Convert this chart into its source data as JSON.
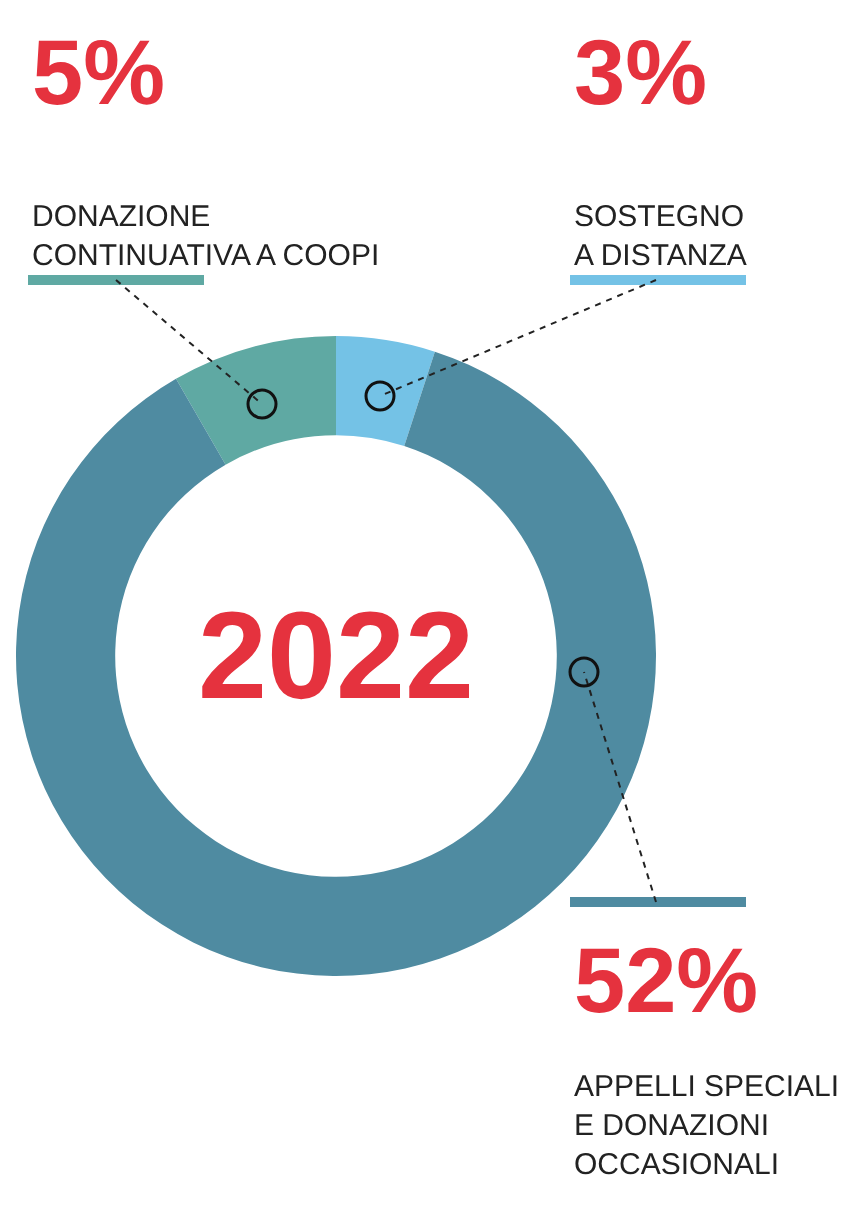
{
  "chart_data": {
    "type": "donut",
    "title": "2022",
    "categories": [
      "DONAZIONE\nCONTINUATIVA A COOPI",
      "SOSTEGNO\nA DISTANZA",
      "APPELLI SPECIALI\nE DONAZIONI\nOCCASIONALI"
    ],
    "values": [
      5,
      3,
      52
    ],
    "value_labels": [
      "5%",
      "3%",
      "52%"
    ],
    "colors": [
      "#5fa9a3",
      "#74c2e6",
      "#4f8ba1"
    ],
    "legend": false
  }
}
